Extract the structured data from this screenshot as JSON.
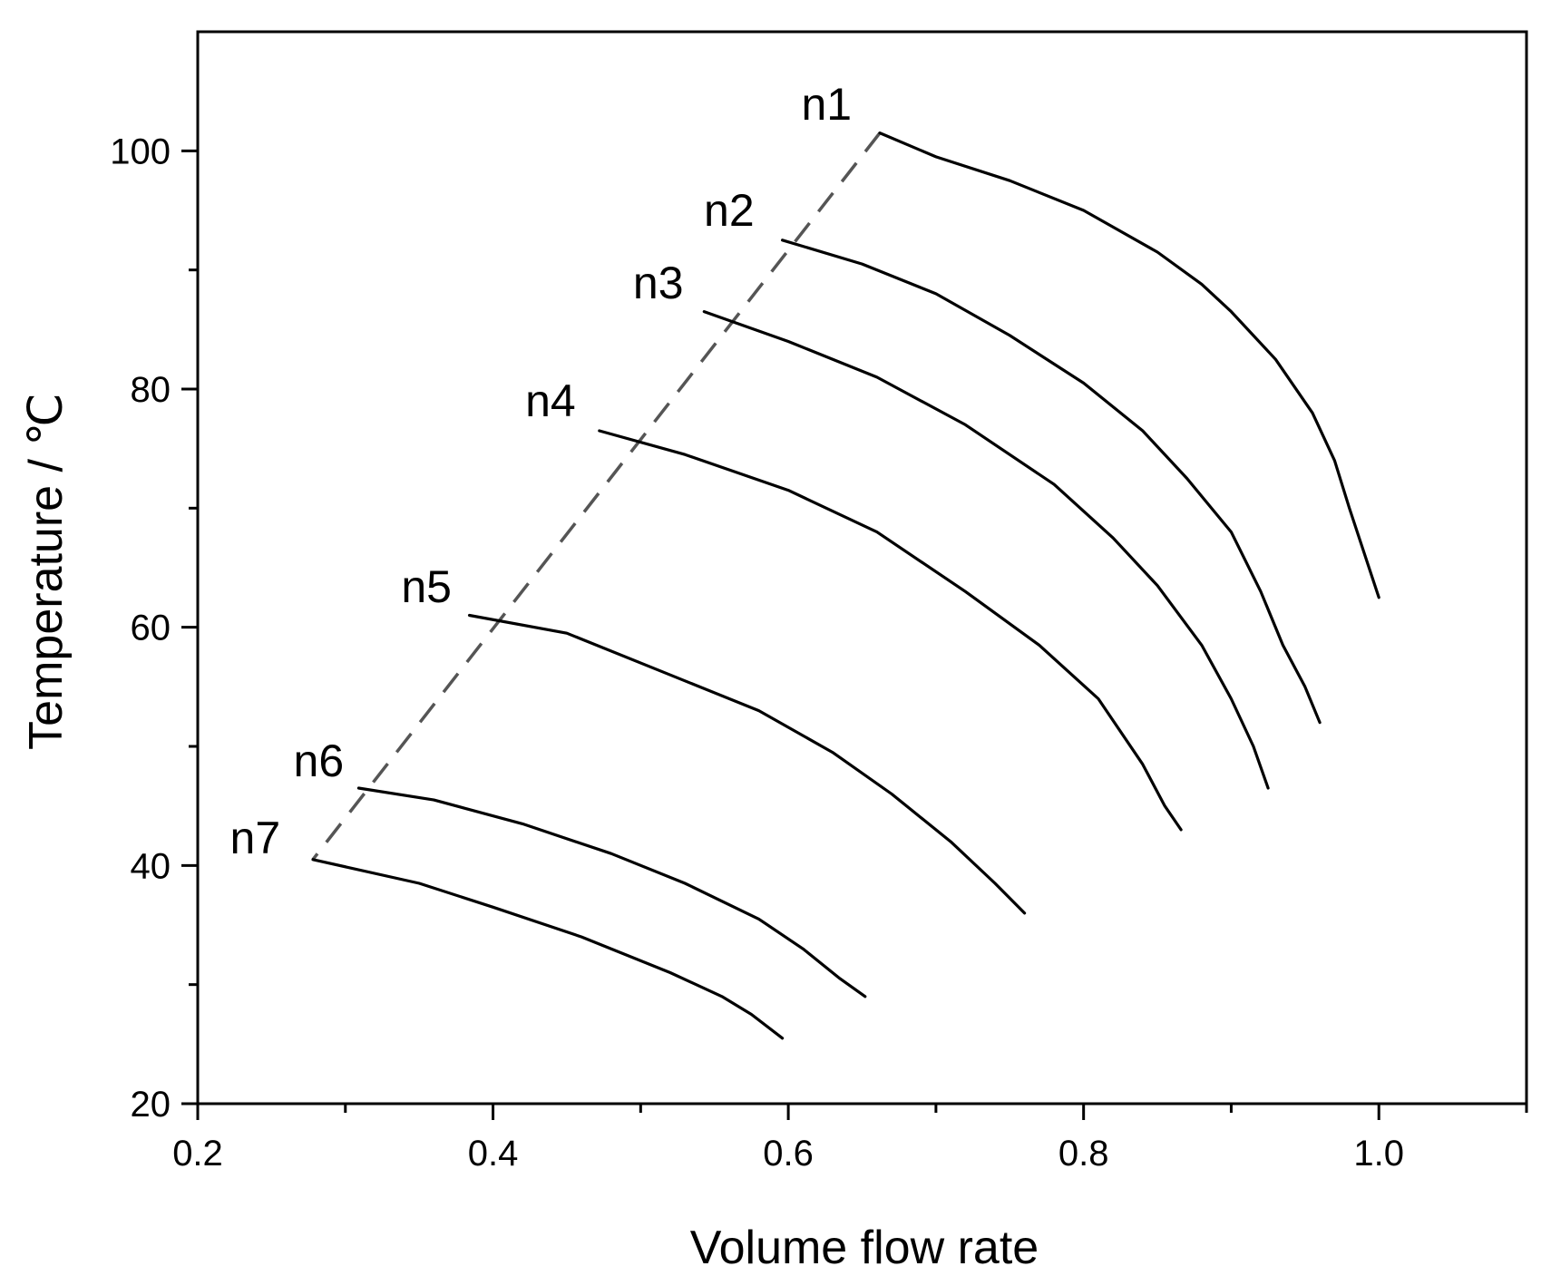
{
  "chart_data": {
    "type": "line",
    "xlabel": "Volume flow rate",
    "ylabel": "Temperature / ℃",
    "xlim": [
      0.2,
      1.1
    ],
    "ylim": [
      20,
      110
    ],
    "x_ticks": [
      0.2,
      0.4,
      0.6,
      0.8,
      1.0
    ],
    "x_tick_labels": [
      "0.2",
      "0.4",
      "0.6",
      "0.8",
      "1.0"
    ],
    "x_minor_ticks": [
      0.3,
      0.5,
      0.7,
      0.9,
      1.1
    ],
    "y_ticks": [
      20,
      40,
      60,
      80,
      100
    ],
    "y_tick_labels": [
      "20",
      "40",
      "60",
      "80",
      "100"
    ],
    "y_minor_ticks": [
      30,
      50,
      70,
      90
    ],
    "grid": false,
    "series": [
      {
        "name": "n1",
        "x": [
          0.662,
          0.7,
          0.75,
          0.8,
          0.85,
          0.88,
          0.9,
          0.93,
          0.955,
          0.97,
          0.98,
          1.0
        ],
        "y": [
          101.5,
          99.5,
          97.5,
          95,
          91.5,
          88.8,
          86.5,
          82.5,
          78,
          74,
          70,
          62.5
        ]
      },
      {
        "name": "n2",
        "x": [
          0.596,
          0.65,
          0.7,
          0.75,
          0.8,
          0.84,
          0.87,
          0.9,
          0.92,
          0.935,
          0.95,
          0.96
        ],
        "y": [
          92.5,
          90.5,
          88,
          84.5,
          80.5,
          76.5,
          72.5,
          68,
          63,
          58.5,
          55,
          52
        ]
      },
      {
        "name": "n3",
        "x": [
          0.543,
          0.6,
          0.66,
          0.72,
          0.78,
          0.82,
          0.85,
          0.88,
          0.9,
          0.915,
          0.925
        ],
        "y": [
          86.5,
          84,
          81,
          77,
          72,
          67.5,
          63.5,
          58.5,
          54,
          50,
          46.5
        ]
      },
      {
        "name": "n4",
        "x": [
          0.472,
          0.53,
          0.6,
          0.66,
          0.72,
          0.77,
          0.81,
          0.84,
          0.855,
          0.866
        ],
        "y": [
          76.5,
          74.5,
          71.5,
          68,
          63,
          58.5,
          54,
          48.5,
          45,
          43
        ]
      },
      {
        "name": "n5",
        "x": [
          0.384,
          0.45,
          0.52,
          0.58,
          0.63,
          0.67,
          0.71,
          0.74,
          0.76
        ],
        "y": [
          61,
          59.5,
          56,
          53,
          49.5,
          46,
          42,
          38.5,
          36
        ]
      },
      {
        "name": "n6",
        "x": [
          0.309,
          0.36,
          0.42,
          0.48,
          0.53,
          0.58,
          0.61,
          0.635,
          0.652
        ],
        "y": [
          46.5,
          45.5,
          43.5,
          41,
          38.5,
          35.5,
          33,
          30.5,
          29
        ]
      },
      {
        "name": "n7",
        "x": [
          0.278,
          0.35,
          0.4,
          0.46,
          0.52,
          0.555,
          0.575,
          0.596
        ],
        "y": [
          40.5,
          38.5,
          36.5,
          34,
          31,
          29,
          27.5,
          25.5
        ]
      }
    ],
    "labels": [
      {
        "text": "n1",
        "x": 0.643,
        "y": 102.6
      },
      {
        "text": "n2",
        "x": 0.577,
        "y": 93.7
      },
      {
        "text": "n3",
        "x": 0.529,
        "y": 87.6
      },
      {
        "text": "n4",
        "x": 0.456,
        "y": 77.7
      },
      {
        "text": "n5",
        "x": 0.372,
        "y": 62.1
      },
      {
        "text": "n6",
        "x": 0.299,
        "y": 47.5
      },
      {
        "text": "n7",
        "x": 0.256,
        "y": 41.0
      }
    ],
    "dashed_line": {
      "x": [
        0.662,
        0.278
      ],
      "y": [
        101.5,
        40.5
      ]
    }
  }
}
